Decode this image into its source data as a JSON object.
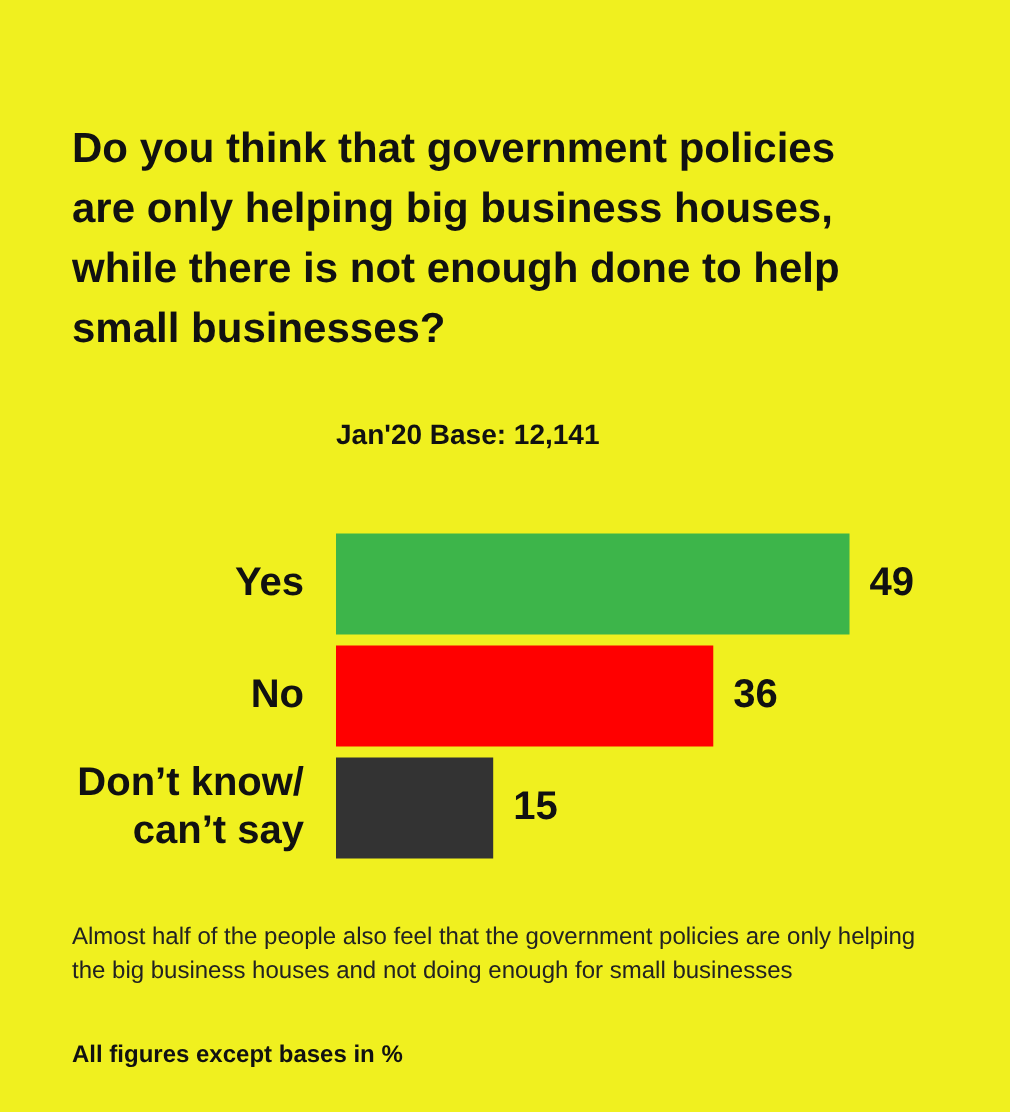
{
  "chart_data": {
    "type": "bar",
    "orientation": "horizontal",
    "title": "Do you think that government policies are only helping big business houses, while there is not enough done to help small businesses?",
    "subtitle": "Jan'20 Base: 12,141",
    "categories": [
      "Yes",
      "No",
      "Don’t know/\ncan’t say"
    ],
    "values": [
      49,
      36,
      15
    ],
    "colors": [
      "#3db54a",
      "#ff0000",
      "#333333"
    ],
    "data_labels": true,
    "legend": false,
    "tick_labels": "y",
    "annotations": [
      "Almost half of the people also feel that the government policies are only helping the big business houses and not doing enough for small businesses",
      "All figures except bases in %"
    ]
  }
}
